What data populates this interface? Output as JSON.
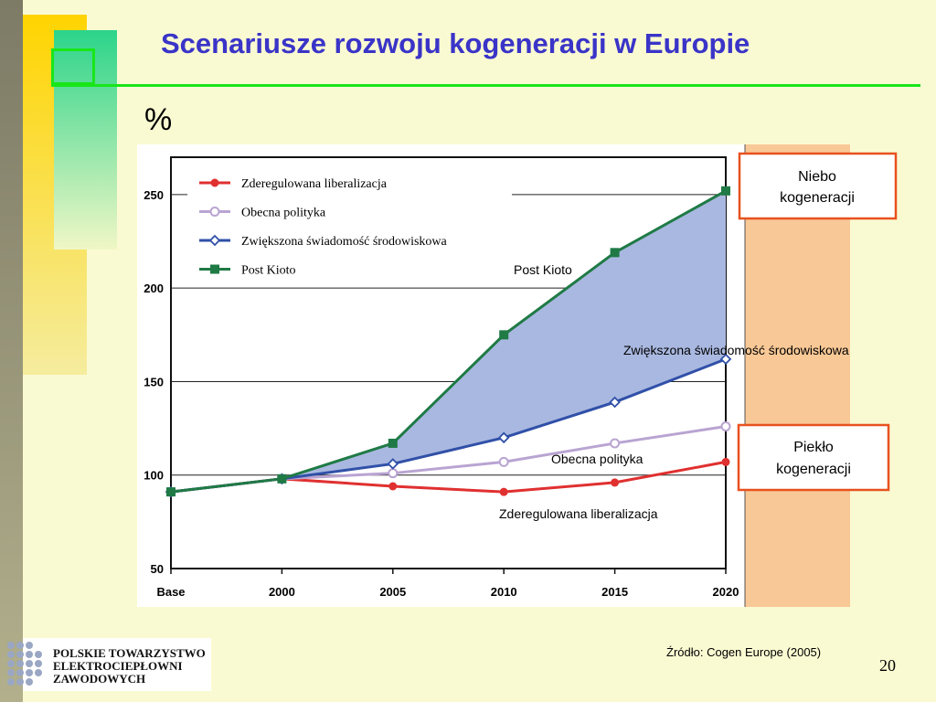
{
  "slide": {
    "title": "Scenariusze rozwoju kogeneracji w  Europie",
    "unit": "%",
    "source": "Źródło: Cogen Europe (2005)",
    "page_number": "20",
    "logo_lines": [
      "POLSKIE TOWARZYSTWO",
      "ELEKTROCIEPŁOWNI",
      "ZAWODOWYCH"
    ],
    "callouts": {
      "heaven": [
        "Niebo",
        "kogeneracji"
      ],
      "hell": [
        "Piekło",
        "kogeneracji"
      ]
    },
    "colors": {
      "title": "#3a34c8",
      "accent_green": "#19e619",
      "callout_border": "#e8511f",
      "band": "#f8c896",
      "fill_area": "#a9b8e0"
    }
  },
  "chart_data": {
    "type": "line",
    "categories": [
      "Base",
      "2000",
      "2005",
      "2010",
      "2015",
      "2020"
    ],
    "ylim": [
      50,
      270
    ],
    "yticks": [
      50,
      100,
      150,
      200,
      250
    ],
    "grid": "horizontal",
    "legend_position": "top-left",
    "series": [
      {
        "name": "Zderegulowana liberalizacja",
        "color": "#e03030",
        "marker": "filled-circle",
        "values": [
          91,
          98,
          94,
          91,
          96,
          107
        ],
        "label": "Zderegulowana liberalizacja"
      },
      {
        "name": "Obecna polityka",
        "color": "#b9a4d2",
        "marker": "hollow-circle",
        "values": [
          91,
          98,
          101,
          107,
          117,
          126
        ],
        "label": "Obecna polityka"
      },
      {
        "name": "Zwiększona świadomość środowiskowa",
        "color": "#3050a8",
        "marker": "hollow-diamond",
        "values": [
          91,
          98,
          106,
          120,
          139,
          162
        ],
        "label": "Zwiększona świadomość środowiskowa"
      },
      {
        "name": "Post Kioto",
        "color": "#1f7a45",
        "marker": "filled-square",
        "values": [
          91,
          98,
          117,
          175,
          219,
          252
        ],
        "label": "Post Kioto"
      }
    ]
  }
}
